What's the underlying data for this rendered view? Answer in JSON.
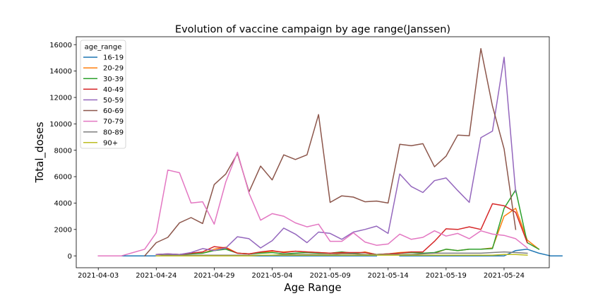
{
  "chart_data": {
    "type": "line",
    "title": "Evolution of vaccine campaign by age range(Janssen)",
    "xlabel": "Age Range",
    "ylabel": "Total_doses",
    "ylim": [
      -900,
      16600
    ],
    "yticks": [
      0,
      2000,
      4000,
      6000,
      8000,
      10000,
      12000,
      14000,
      16000
    ],
    "xlim": [
      -1.9,
      38.9
    ],
    "xticks": [
      {
        "pos": 0,
        "label": "2021-04-03"
      },
      {
        "pos": 5,
        "label": "2021-04-24"
      },
      {
        "pos": 10,
        "label": "2021-04-29"
      },
      {
        "pos": 15,
        "label": "2021-05-04"
      },
      {
        "pos": 20,
        "label": "2021-05-09"
      },
      {
        "pos": 25,
        "label": "2021-05-14"
      },
      {
        "pos": 30,
        "label": "2021-05-19"
      },
      {
        "pos": 35,
        "label": "2021-05-24"
      }
    ],
    "legend_title": "age_range",
    "legend_position": "top-left",
    "series": [
      {
        "name": "16-19",
        "color": "#1f77b4",
        "segments": [
          {
            "start": 2,
            "values": [
              0,
              0,
              0,
              0,
              0,
              0,
              0,
              0,
              0,
              0,
              0,
              0,
              0,
              0,
              0,
              0,
              0,
              0,
              0,
              0,
              0,
              0,
              0
            ]
          },
          {
            "start": 26,
            "values": [
              0,
              0,
              0,
              0,
              0,
              0,
              0,
              0,
              0,
              0,
              400,
              500,
              200,
              0,
              0
            ]
          }
        ]
      },
      {
        "name": "20-29",
        "color": "#ff7f0e",
        "segments": [
          {
            "start": 5,
            "values": [
              100,
              120,
              100,
              180,
              200,
              500,
              650,
              200,
              150,
              250,
              350,
              300,
              350,
              300,
              250,
              200,
              220,
              150,
              300,
              100,
              150,
              250,
              300,
              200,
              200,
              500,
              400,
              500,
              500,
              600,
              3000,
              3600,
              1200,
              500
            ]
          }
        ]
      },
      {
        "name": "30-39",
        "color": "#2ca02c",
        "segments": [
          {
            "start": 5,
            "values": [
              100,
              120,
              100,
              150,
              200,
              400,
              500,
              200,
              150,
              200,
              250,
              150,
              200,
              250,
              200,
              200,
              300,
              200,
              250,
              100,
              150,
              200,
              250,
              200,
              250,
              500,
              400,
              500,
              500,
              550,
              3600,
              5000,
              1000,
              500
            ]
          }
        ]
      },
      {
        "name": "40-49",
        "color": "#d62728",
        "segments": [
          {
            "start": 5,
            "values": [
              100,
              150,
              100,
              200,
              300,
              700,
              600,
              200,
              150,
              300,
              400,
              250,
              350,
              300,
              250,
              200,
              250,
              250,
              250,
              100,
              150,
              200,
              300,
              300,
              1100,
              2050,
              2000,
              2200,
              2000,
              3950,
              3800,
              3300,
              1000
            ]
          }
        ]
      },
      {
        "name": "50-59",
        "color": "#9467bd",
        "segments": [
          {
            "start": 5,
            "values": [
              100,
              150,
              100,
              250,
              550,
              400,
              600,
              1450,
              1300,
              600,
              1150,
              2100,
              1650,
              1000,
              1800,
              1700,
              1250,
              1800,
              2000,
              2250,
              1700,
              6200,
              5250,
              4800,
              5700,
              5900,
              4950,
              4050,
              8950,
              9450,
              15050,
              4800
            ]
          }
        ]
      },
      {
        "name": "60-69",
        "color": "#8c564b",
        "segments": [
          {
            "start": 4,
            "values": [
              0,
              1000,
              1400,
              2500,
              2900,
              2450,
              5400,
              6200,
              7750,
              4850,
              6800,
              5750,
              7650,
              7300,
              7650,
              10700,
              4050,
              4550,
              4450,
              4100,
              4150,
              4000,
              8450,
              8350,
              8500,
              6750,
              7550,
              9150,
              9100,
              15700,
              11350,
              8100,
              2000
            ]
          }
        ]
      },
      {
        "name": "70-79",
        "color": "#e377c2",
        "segments": [
          {
            "start": 0,
            "values": [
              0,
              0,
              0,
              250,
              500,
              1750,
              6500,
              6300,
              4000,
              4100,
              2400,
              5600,
              7850,
              4750,
              2700,
              3200,
              3000,
              2500,
              2200,
              2400,
              1100,
              1100,
              1750,
              1050,
              800,
              900,
              1650,
              1250,
              1400,
              1900,
              1500,
              1700,
              1300,
              1900,
              1650,
              1550,
              1300,
              600
            ]
          }
        ]
      },
      {
        "name": "80-89",
        "color": "#7f7f7f",
        "segments": [
          {
            "start": 5,
            "values": [
              0,
              50,
              50,
              50,
              50,
              50,
              50,
              50,
              50,
              50,
              50,
              100,
              100,
              100,
              100,
              100,
              150,
              150,
              100,
              100,
              100,
              100,
              100,
              150,
              200,
              200,
              200,
              200,
              200,
              250,
              300,
              250,
              200
            ]
          }
        ]
      },
      {
        "name": "90+",
        "color": "#bcbd22",
        "segments": [
          {
            "start": 5,
            "values": [
              0,
              0,
              0,
              0,
              0,
              0,
              0,
              0,
              0,
              50,
              50,
              50,
              50,
              50,
              50,
              50,
              50,
              50,
              50,
              50,
              50,
              50,
              50,
              50,
              50,
              50,
              50,
              50,
              50,
              50,
              100,
              100,
              50
            ]
          }
        ]
      }
    ]
  }
}
